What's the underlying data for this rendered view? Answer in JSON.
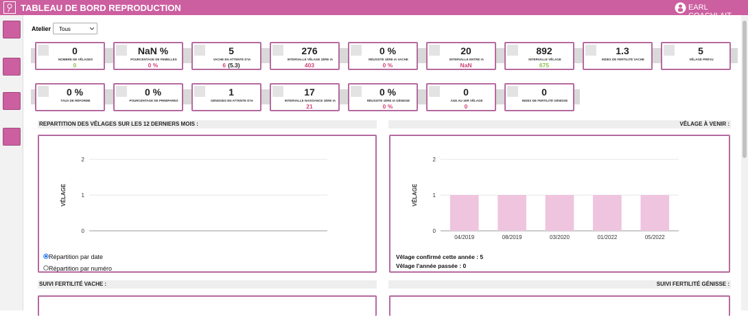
{
  "header": {
    "title": "TABLEAU DE BORD REPRODUCTION",
    "user": "EARL COACHLAIT"
  },
  "filter": {
    "label": "Atelier",
    "selected": "Tous"
  },
  "kpi_rows": [
    [
      {
        "value": "0",
        "label": "NOMBRE DE VÊLAGES",
        "sub": "0",
        "sub_color": "#8bc34a"
      },
      {
        "value": "NaN %",
        "label": "POURCENTAGE DE FEMELLES",
        "sub": "0 %",
        "sub_color": "#d2427a"
      },
      {
        "value": "5",
        "label": "VACHE EN ATTENTE D'IA",
        "sub": "6",
        "sub_extra": "(5.3)",
        "sub_color": "#d2427a"
      },
      {
        "value": "276",
        "label": "INTERVALLE VÊLAGE 1ÈRE IA",
        "sub": "403",
        "sub_color": "#d2427a"
      },
      {
        "value": "0 %",
        "label": "RÉUSSITE 1ÈRE IA VACHE",
        "sub": "0 %",
        "sub_color": "#d2427a"
      },
      {
        "value": "20",
        "label": "INTERVALLE ENTRE IA",
        "sub": "NaN",
        "sub_color": "#d2427a"
      },
      {
        "value": "892",
        "label": "INTERVALLE VÊLAGE",
        "sub": "675",
        "sub_color": "#8bc34a"
      },
      {
        "value": "1.3",
        "label": "INDEX DE FERTILITÉ VACHE"
      },
      {
        "value": "5",
        "label": "VÊLAGE PRÉVU"
      }
    ],
    [
      {
        "value": "0 %",
        "label": "TAUX DE RÉFORME"
      },
      {
        "value": "0 %",
        "label": "POURCENTAGE DE PRIMIPARES"
      },
      {
        "value": "1",
        "label": "GÉNISSES EN ATTENTE D'IA"
      },
      {
        "value": "17",
        "label": "INTERVALLE NAISSANCE 1ÈRE IA",
        "sub": "21",
        "sub_color": "#d2427a"
      },
      {
        "value": "0 %",
        "label": "RÉUSSITE 1ÈRE IA GÉNISSE",
        "sub": "0 %",
        "sub_color": "#d2427a"
      },
      {
        "value": "0",
        "label": "AGE AU 1ER VÊLAGE",
        "sub": "0",
        "sub_color": "#d2427a"
      },
      {
        "value": "0",
        "label": "INDEX DE FERTILITÉ GÉNISSE"
      }
    ]
  ],
  "panels": [
    {
      "title": "REPARTITION DES VÊLAGES SUR LES 12 DERNIERS MOIS :",
      "options": [
        "Répartition par date",
        "Répartition par numéro"
      ]
    },
    {
      "title": "VÊLAGE À VENIR :",
      "notes": [
        "Vêlage confirmé cette année : 5",
        "Vêlage l'année passée : 0"
      ]
    }
  ],
  "chart_data": [
    {
      "type": "bar",
      "ylabel": "VÊLAGE",
      "categories": [],
      "values": [],
      "color": "#efc4de",
      "ylim": [
        0,
        2
      ],
      "yticks": [
        0,
        1,
        2
      ],
      "grid": true
    },
    {
      "type": "bar",
      "ylabel": "VÊLAGE",
      "categories": [
        "04/2019",
        "08/2019",
        "03/2020",
        "01/2022",
        "05/2022"
      ],
      "values": [
        1,
        1,
        1,
        1,
        1
      ],
      "color": "#efc4de",
      "ylim": [
        0,
        2
      ],
      "yticks": [
        0,
        1,
        2
      ],
      "grid": true
    }
  ],
  "bottom_sections": [
    "SUIVI FERTILITÉ VACHE :",
    "SUIVI FERTILITÉ GÉNISSE :"
  ]
}
